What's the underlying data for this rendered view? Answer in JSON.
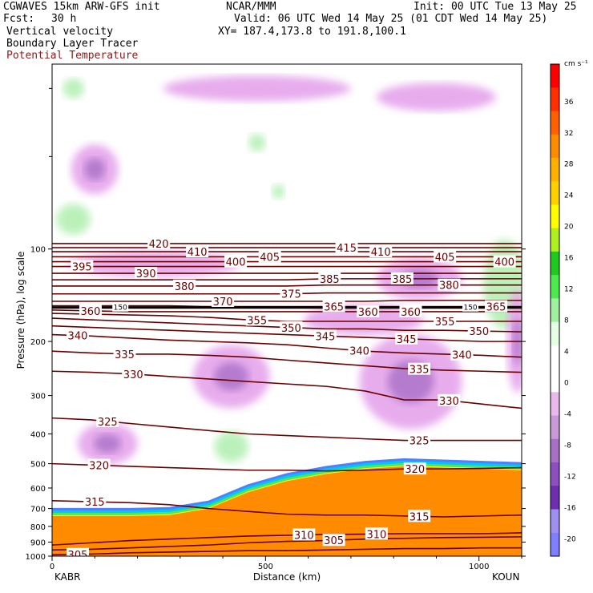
{
  "header": {
    "model": "CGWAVES 15km ARW-GFS init",
    "center": "NCAR/MMM",
    "init": "Init: 00 UTC Tue 13 May 25",
    "fcst_label": "Fcst:",
    "fcst_value": "30 h",
    "valid": "Valid: 06 UTC Wed 14 May 25 (01 CDT Wed 14 May 25)",
    "fields": [
      "Vertical velocity",
      "Boundary Layer Tracer",
      "Potential Temperature"
    ],
    "xy": "XY= 187.4,173.8 to 191.8,100.1"
  },
  "colors": {
    "theta_line": "#6b0000",
    "tracer_orange": "#ff8c00",
    "cb_ramp": [
      "#7f7fff",
      "#9f8fef",
      "#6b2fb0",
      "#8d4fbf",
      "#a86fc7",
      "#c99ad8",
      "#e9b9ec",
      "#ffffff",
      "#ffffff",
      "#e4ffe4",
      "#9ff09f",
      "#50e850",
      "#20c820",
      "#b0f020",
      "#ffff00",
      "#ffd000",
      "#ffb000",
      "#ff8c00",
      "#ff6000",
      "#ff3000",
      "#ff0000"
    ]
  },
  "chart_data": {
    "type": "cross-section",
    "xlabel": "Distance (km)",
    "ylabel": "Pressure (hPa), log scale",
    "xlim": [
      0,
      1100
    ],
    "ylim": [
      1000,
      25
    ],
    "x_ticks": [
      0,
      500,
      1000
    ],
    "y_ticks": [
      100,
      200,
      300,
      400,
      500,
      600,
      700,
      800,
      900,
      1000
    ],
    "endpoints": {
      "left": "KABR",
      "right": "KOUN"
    },
    "colorbar": {
      "units": "cm s⁻¹",
      "ticks": [
        36,
        32,
        28,
        24,
        20,
        16,
        12,
        8,
        4,
        0,
        -4,
        -8,
        -12,
        -16,
        -20
      ]
    },
    "theta_contours": [
      {
        "value": 305,
        "label_x": 60,
        "p": [
          990,
          985,
          975,
          970,
          965,
          960,
          960,
          955,
          950,
          945,
          945,
          940,
          940
        ]
      },
      {
        "value": 310,
        "label_x": 590,
        "p": [
          920,
          905,
          890,
          880,
          870,
          860,
          855,
          850,
          848,
          845,
          845,
          845,
          840
        ]
      },
      {
        "value": 310,
        "label_x": 760,
        "p": [
          920,
          905,
          890,
          880,
          870,
          860,
          855,
          850,
          848,
          845,
          845,
          845,
          840
        ]
      },
      {
        "value": 305,
        "label_x": 660,
        "p": [
          955,
          950,
          940,
          930,
          920,
          905,
          895,
          890,
          880,
          875,
          870,
          868,
          865
        ]
      },
      {
        "value": 315,
        "label_x": 100,
        "p": [
          660,
          665,
          670,
          680,
          700,
          715,
          730,
          735,
          735,
          740,
          745,
          740,
          735
        ]
      },
      {
        "value": 315,
        "label_x": 860,
        "p": [
          660,
          665,
          670,
          680,
          700,
          715,
          730,
          735,
          735,
          740,
          745,
          740,
          735
        ]
      },
      {
        "value": 320,
        "label_x": 110,
        "p": [
          500,
          505,
          510,
          515,
          520,
          525,
          525,
          528,
          525,
          520,
          520,
          518,
          515
        ]
      },
      {
        "value": 320,
        "label_x": 850,
        "p": [
          500,
          505,
          510,
          515,
          520,
          525,
          525,
          528,
          525,
          520,
          520,
          518,
          515
        ]
      },
      {
        "value": 325,
        "label_x": 130,
        "p": [
          355,
          360,
          370,
          380,
          390,
          400,
          405,
          410,
          415,
          420,
          420,
          420,
          420
        ]
      },
      {
        "value": 325,
        "label_x": 860,
        "p": [
          355,
          360,
          370,
          380,
          390,
          400,
          405,
          410,
          415,
          420,
          420,
          420,
          420
        ]
      },
      {
        "value": 330,
        "label_x": 190,
        "p": [
          250,
          252,
          255,
          260,
          265,
          270,
          275,
          280,
          290,
          310,
          310,
          320,
          330
        ]
      },
      {
        "value": 330,
        "label_x": 930,
        "p": [
          250,
          252,
          255,
          260,
          265,
          270,
          275,
          280,
          290,
          310,
          310,
          320,
          330
        ]
      },
      {
        "value": 335,
        "label_x": 170,
        "p": [
          215,
          218,
          220,
          220,
          222,
          225,
          230,
          235,
          240,
          245,
          248,
          250,
          252
        ]
      },
      {
        "value": 335,
        "label_x": 860,
        "p": [
          215,
          218,
          220,
          220,
          222,
          225,
          230,
          235,
          240,
          245,
          248,
          250,
          252
        ]
      },
      {
        "value": 340,
        "label_x": 60,
        "p": [
          190,
          192,
          195,
          198,
          200,
          202,
          205,
          210,
          215,
          218,
          220,
          222,
          225
        ]
      },
      {
        "value": 340,
        "label_x": 720,
        "p": [
          190,
          192,
          195,
          198,
          200,
          202,
          205,
          210,
          215,
          218,
          220,
          222,
          225
        ]
      },
      {
        "value": 340,
        "label_x": 960,
        "p": [
          190,
          192,
          195,
          198,
          200,
          202,
          205,
          210,
          215,
          218,
          220,
          222,
          225
        ]
      },
      {
        "value": 345,
        "label_x": 640,
        "p": [
          178,
          180,
          182,
          184,
          186,
          188,
          190,
          192,
          194,
          196,
          198,
          200,
          200
        ]
      },
      {
        "value": 345,
        "label_x": 830,
        "p": [
          178,
          180,
          182,
          184,
          186,
          188,
          190,
          192,
          194,
          196,
          198,
          200,
          200
        ]
      },
      {
        "value": 350,
        "label_x": 560,
        "p": [
          168,
          170,
          172,
          174,
          176,
          178,
          180,
          182,
          182,
          184,
          184,
          185,
          186
        ]
      },
      {
        "value": 350,
        "label_x": 1000,
        "p": [
          168,
          170,
          172,
          174,
          176,
          178,
          180,
          182,
          182,
          184,
          184,
          185,
          186
        ]
      },
      {
        "value": 355,
        "label_x": 480,
        "p": [
          162,
          163,
          164,
          165,
          167,
          170,
          172,
          172,
          172,
          172,
          172,
          172,
          172
        ]
      },
      {
        "value": 355,
        "label_x": 920,
        "p": [
          162,
          163,
          164,
          165,
          167,
          170,
          172,
          172,
          172,
          172,
          172,
          172,
          172
        ]
      },
      {
        "value": 360,
        "label_x": 90,
        "p": [
          158,
          159,
          160,
          160,
          160,
          160,
          160,
          160,
          160,
          160,
          160,
          160,
          160
        ]
      },
      {
        "value": 360,
        "label_x": 740,
        "p": [
          158,
          159,
          160,
          160,
          160,
          160,
          160,
          160,
          160,
          160,
          160,
          160,
          160
        ]
      },
      {
        "value": 360,
        "label_x": 840,
        "p": [
          158,
          159,
          160,
          160,
          160,
          160,
          160,
          160,
          160,
          160,
          160,
          160,
          160
        ]
      },
      {
        "value": 365,
        "label_x": 660,
        "p": [
          153,
          153,
          153,
          153,
          154,
          154,
          154,
          154,
          154,
          154,
          154,
          154,
          154
        ]
      },
      {
        "value": 365,
        "label_x": 1040,
        "p": [
          153,
          153,
          153,
          153,
          154,
          154,
          154,
          154,
          154,
          154,
          154,
          154,
          154
        ]
      },
      {
        "value": 370,
        "label_x": 400,
        "p": [
          148,
          148,
          148,
          148,
          148,
          148,
          148,
          148,
          148,
          147,
          147,
          147,
          147
        ]
      },
      {
        "value": 375,
        "label_x": 560,
        "p": [
          140,
          140,
          140,
          140,
          140,
          140,
          140,
          139,
          139,
          139,
          139,
          139,
          139
        ]
      },
      {
        "value": 380,
        "label_x": 310,
        "p": [
          132,
          132,
          132,
          132,
          132,
          132,
          132,
          131,
          131,
          131,
          131,
          131,
          131
        ]
      },
      {
        "value": 380,
        "label_x": 930,
        "p": [
          132,
          132,
          132,
          132,
          132,
          132,
          132,
          131,
          131,
          131,
          131,
          131,
          131
        ]
      },
      {
        "value": 385,
        "label_x": 650,
        "p": [
          126,
          126,
          126,
          126,
          126,
          126,
          126,
          125,
          125,
          125,
          125,
          125,
          125
        ]
      },
      {
        "value": 385,
        "label_x": 820,
        "p": [
          126,
          126,
          126,
          126,
          126,
          126,
          126,
          125,
          125,
          125,
          125,
          125,
          125
        ]
      },
      {
        "value": 390,
        "label_x": 220,
        "p": [
          120,
          120,
          120,
          120,
          120,
          120,
          120,
          120,
          120,
          120,
          120,
          120,
          120
        ]
      },
      {
        "value": 395,
        "label_x": 70,
        "p": [
          114,
          114,
          114,
          114,
          114,
          114,
          114,
          114,
          114,
          114,
          114,
          114,
          114
        ]
      },
      {
        "value": 400,
        "label_x": 430,
        "p": [
          110,
          110,
          110,
          110,
          110,
          110,
          110,
          110,
          110,
          110,
          110,
          110,
          110
        ]
      },
      {
        "value": 400,
        "label_x": 1060,
        "p": [
          110,
          110,
          110,
          110,
          110,
          110,
          110,
          110,
          110,
          110,
          110,
          110,
          110
        ]
      },
      {
        "value": 405,
        "label_x": 510,
        "p": [
          106,
          106,
          106,
          106,
          106,
          106,
          106,
          106,
          106,
          106,
          106,
          106,
          106
        ]
      },
      {
        "value": 405,
        "label_x": 920,
        "p": [
          106,
          106,
          106,
          106,
          106,
          106,
          106,
          106,
          106,
          106,
          106,
          106,
          106
        ]
      },
      {
        "value": 410,
        "label_x": 340,
        "p": [
          102,
          102,
          102,
          102,
          102,
          102,
          102,
          102,
          102,
          102,
          102,
          102,
          102
        ]
      },
      {
        "value": 410,
        "label_x": 770,
        "p": [
          102,
          102,
          102,
          102,
          102,
          102,
          102,
          102,
          102,
          102,
          102,
          102,
          102
        ]
      },
      {
        "value": 415,
        "label_x": 690,
        "p": [
          99,
          99,
          99,
          99,
          99,
          99,
          99,
          99,
          99,
          99,
          99,
          99,
          99
        ]
      },
      {
        "value": 420,
        "label_x": 250,
        "p": [
          96,
          96,
          96,
          96,
          96,
          96,
          96,
          96,
          96,
          96,
          96,
          96,
          96
        ]
      }
    ],
    "x_grid": [
      0,
      91.7,
      183.3,
      275,
      366.7,
      458.3,
      550,
      641.7,
      733.3,
      825,
      916.7,
      1008.3,
      1100
    ],
    "tropopause": {
      "label": "150",
      "label_x": [
        160,
        980
      ],
      "p": 155
    },
    "tracer": {
      "top_p": [
        740,
        740,
        740,
        735,
        700,
        620,
        570,
        540,
        520,
        510,
        515,
        520,
        525
      ],
      "x": [
        0,
        91.7,
        183.3,
        275,
        366.7,
        458.3,
        550,
        641.7,
        733.3,
        825,
        916.7,
        1008.3,
        1100
      ]
    },
    "vv_patches": [
      {
        "type": "up",
        "x": 50,
        "p": 30,
        "rx": 25,
        "rp": 0.04
      },
      {
        "type": "down",
        "x": 100,
        "p": 55,
        "rx": 55,
        "rp": 0.15
      },
      {
        "type": "down",
        "x": 480,
        "p": 30,
        "rx": 220,
        "rp": 0.06
      },
      {
        "type": "down",
        "x": 900,
        "p": 32,
        "rx": 140,
        "rp": 0.07
      },
      {
        "type": "up",
        "x": 50,
        "p": 80,
        "rx": 40,
        "rp": 0.08
      },
      {
        "type": "up",
        "x": 480,
        "p": 45,
        "rx": 20,
        "rp": 0.03
      },
      {
        "type": "up",
        "x": 530,
        "p": 65,
        "rx": 15,
        "rp": 0.02
      },
      {
        "type": "down",
        "x": 240,
        "p": 112,
        "rx": 200,
        "rp": 0.06
      },
      {
        "type": "down",
        "x": 860,
        "p": 125,
        "rx": 100,
        "rp": 0.12
      },
      {
        "type": "down",
        "x": 730,
        "p": 170,
        "rx": 140,
        "rp": 0.08
      },
      {
        "type": "down",
        "x": 840,
        "p": 270,
        "rx": 120,
        "rp": 0.32
      },
      {
        "type": "down",
        "x": 420,
        "p": 260,
        "rx": 90,
        "rp": 0.2
      },
      {
        "type": "down",
        "x": 130,
        "p": 430,
        "rx": 70,
        "rp": 0.12
      },
      {
        "type": "up",
        "x": 420,
        "p": 440,
        "rx": 40,
        "rp": 0.08
      },
      {
        "type": "up",
        "x": 1060,
        "p": 130,
        "rx": 50,
        "rp": 0.3
      },
      {
        "type": "down",
        "x": 1090,
        "p": 200,
        "rx": 25,
        "rp": 0.35
      }
    ]
  }
}
